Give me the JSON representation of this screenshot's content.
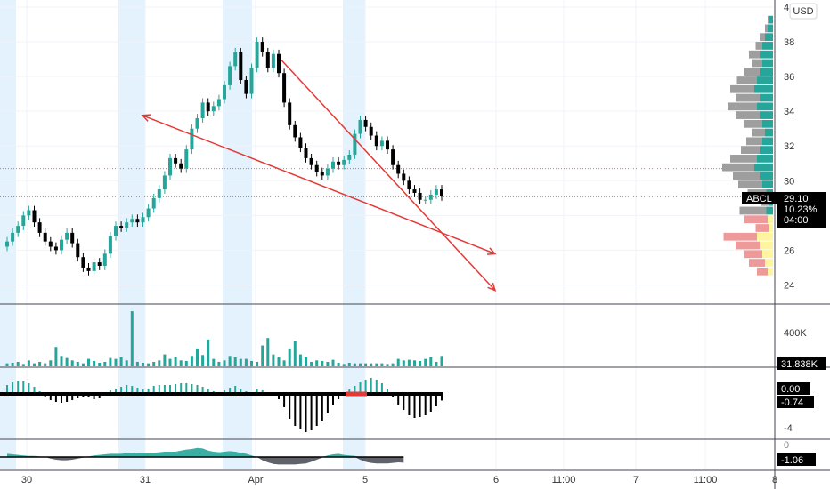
{
  "toolbar": {
    "currency_label": "USD"
  },
  "price_tag": {
    "symbol": "ABCL",
    "price": "29.10",
    "change": "10.23%",
    "countdown": "04:00"
  },
  "volume_tag": "31.838K",
  "osc_tags": {
    "zero": "0.00",
    "value": "-0.74"
  },
  "lower_tag": "-1.06",
  "colors": {
    "up": "#26a69a",
    "down": "#000000",
    "trendline": "#e53935",
    "session_shade": "#e3f2fd",
    "volume": "#26a69a",
    "profile_up": "#26a69a",
    "profile_down": "#9e9e9e",
    "profile_va_up": "#ef9a9a",
    "profile_va_down": "#fff59d"
  },
  "chart_data": [
    {
      "type": "candlestick",
      "panel": "price",
      "ylim": [
        23,
        40
      ],
      "y_ticks": [
        "24",
        "26",
        "28",
        "30",
        "32",
        "34",
        "36",
        "38",
        "4"
      ],
      "x_ticks": [
        "30",
        "31",
        "Apr",
        "5",
        "6",
        "11:00",
        "7",
        "11:00",
        "8"
      ],
      "close": [
        26.5,
        27.0,
        27.4,
        28.0,
        28.3,
        27.6,
        27.0,
        26.5,
        26.2,
        26.0,
        26.6,
        27.0,
        26.4,
        25.6,
        25.0,
        24.8,
        25.3,
        25.1,
        25.8,
        26.8,
        27.4,
        27.3,
        27.6,
        27.8,
        27.6,
        27.9,
        28.4,
        29.0,
        29.5,
        30.3,
        31.3,
        31.0,
        30.7,
        31.8,
        33.0,
        33.6,
        34.5,
        34.0,
        34.3,
        34.7,
        35.5,
        36.6,
        37.4,
        35.8,
        35.0,
        36.5,
        38.0,
        37.4,
        36.5,
        37.3,
        36.2,
        34.5,
        33.2,
        32.5,
        31.9,
        31.3,
        30.9,
        30.5,
        30.3,
        30.7,
        31.1,
        30.9,
        31.2,
        31.5,
        32.7,
        33.5,
        33.1,
        32.6,
        32.0,
        32.3,
        31.8,
        30.9,
        30.4,
        30.0,
        29.5,
        29.3,
        28.9,
        28.9,
        29.2,
        29.5,
        29.1
      ]
    },
    {
      "type": "line",
      "panel": "price",
      "series": [
        {
          "x": [
            23,
            80
          ],
          "y": [
            34.0,
            27.0
          ]
        },
        {
          "x": [
            45,
            80
          ],
          "y": [
            38.8,
            27.0
          ]
        }
      ]
    },
    {
      "type": "bar",
      "panel": "volume",
      "y_ticks": [
        "400K"
      ],
      "values": [
        10,
        12,
        15,
        8,
        20,
        10,
        15,
        10,
        20,
        65,
        35,
        28,
        20,
        15,
        10,
        25,
        18,
        12,
        15,
        28,
        25,
        30,
        20,
        185,
        15,
        12,
        10,
        15,
        20,
        40,
        25,
        30,
        20,
        18,
        35,
        60,
        38,
        90,
        25,
        15,
        20,
        35,
        30,
        25,
        25,
        18,
        15,
        70,
        95,
        40,
        30,
        20,
        60,
        85,
        40,
        30,
        15,
        20,
        18,
        15,
        22,
        12,
        8,
        12,
        10,
        10,
        10,
        10,
        10,
        10,
        8,
        10,
        25,
        20,
        22,
        20,
        18,
        25,
        30,
        15,
        35
      ]
    },
    {
      "type": "bar",
      "panel": "oscillator",
      "y_ticks": [
        "0.00",
        "-0.74",
        "-4"
      ],
      "values": [
        1.0,
        1.3,
        1.5,
        1.4,
        1.2,
        0.8,
        0.3,
        -0.3,
        -0.7,
        -0.9,
        -1.0,
        -0.9,
        -0.7,
        -0.5,
        -0.4,
        -0.4,
        -0.6,
        -0.5,
        0,
        0.4,
        0.6,
        0.8,
        1.0,
        0.9,
        0.7,
        0.5,
        0.6,
        0.9,
        1.0,
        1.0,
        1.0,
        1.1,
        1.2,
        1.2,
        1.1,
        1.0,
        0.8,
        0.5,
        0.3,
        0.2,
        0.4,
        0.7,
        0.9,
        0.6,
        0.3,
        0.1,
        0.5,
        0.4,
        0.2,
        -0.2,
        -0.6,
        -1.5,
        -2.8,
        -3.6,
        -4.0,
        -4.3,
        -4.1,
        -3.6,
        -3.0,
        -2.2,
        -1.3,
        -0.6,
        0,
        0.5,
        0.9,
        1.3,
        1.6,
        1.8,
        1.6,
        1.2,
        0.6,
        -0.3,
        -1.2,
        -1.8,
        -2.4,
        -2.7,
        -2.6,
        -2.4,
        -2.0,
        -1.4,
        -0.74
      ]
    },
    {
      "type": "area",
      "panel": "lower",
      "y_ticks": [
        "0",
        "-1.06"
      ],
      "values": [
        0.6,
        0.5,
        0.4,
        0.3,
        0.2,
        0.2,
        0.1,
        0,
        -0.3,
        -0.5,
        -0.6,
        -0.6,
        -0.5,
        -0.3,
        -0.1,
        0.1,
        0.3,
        0.4,
        0.5,
        0.6,
        0.6,
        0.6,
        0.7,
        0.7,
        0.8,
        0.8,
        0.8,
        0.8,
        0.9,
        1.0,
        1.0,
        1.0,
        1.2,
        1.4,
        1.5,
        1.7,
        1.6,
        1.2,
        1.0,
        0.9,
        1.0,
        1.1,
        1.0,
        0.8,
        0.6,
        0.3,
        0,
        -0.6,
        -1.0,
        -1.3,
        -1.4,
        -1.4,
        -1.4,
        -1.4,
        -1.3,
        -1.2,
        -0.9,
        -0.5,
        -0.1,
        0.3,
        0.5,
        0.6,
        0.4,
        0.3,
        0.2,
        -0.5,
        -0.9,
        -1.1,
        -1.2,
        -1.2,
        -1.2,
        -1.1,
        -1.0,
        -1.06
      ]
    },
    {
      "type": "bar",
      "panel": "volume-profile",
      "ylim": [
        23,
        40
      ],
      "levels": [
        24.75,
        25.25,
        25.75,
        26.25,
        26.75,
        27.25,
        27.75,
        28.25,
        28.75,
        29.25,
        29.75,
        30.25,
        30.75,
        31.25,
        31.75,
        32.25,
        32.75,
        33.25,
        33.75,
        34.25,
        34.75,
        35.25,
        35.75,
        36.25,
        36.75,
        37.25,
        37.75,
        38.25,
        38.75,
        39.25
      ],
      "up": [
        4,
        6,
        8,
        10,
        12,
        3,
        4,
        5,
        3,
        5,
        8,
        10,
        14,
        12,
        10,
        8,
        6,
        8,
        10,
        12,
        10,
        14,
        12,
        10,
        8,
        10,
        8,
        6,
        4,
        3
      ],
      "down": [
        8,
        12,
        14,
        18,
        25,
        10,
        18,
        20,
        6,
        14,
        18,
        20,
        24,
        20,
        14,
        12,
        10,
        14,
        18,
        22,
        18,
        18,
        15,
        12,
        8,
        8,
        5,
        4,
        2,
        1
      ]
    }
  ]
}
